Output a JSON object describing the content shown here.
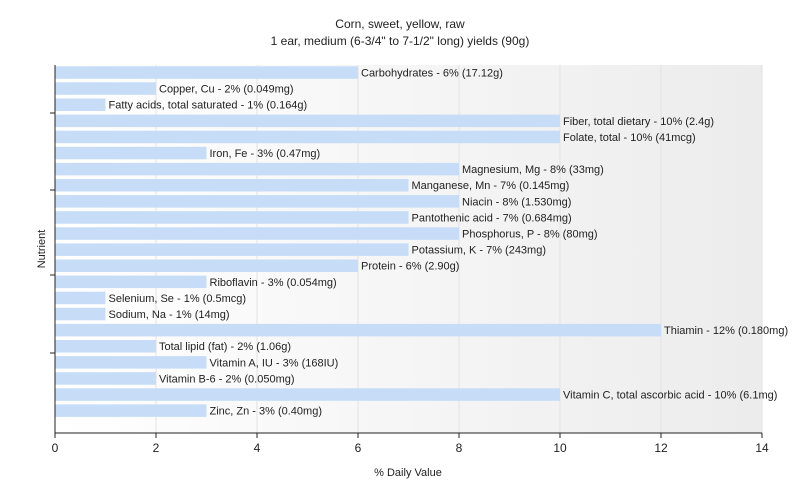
{
  "chart_data": {
    "type": "bar",
    "orientation": "horizontal",
    "title": "Corn, sweet, yellow, raw",
    "subtitle": "1 ear, medium (6-3/4\" to 7-1/2\" long) yields (90g)",
    "xlabel": "% Daily Value",
    "ylabel": "Nutrient",
    "xlim": [
      0,
      14
    ],
    "xticks": [
      0,
      2,
      4,
      6,
      8,
      10,
      12,
      14
    ],
    "grid": "vertical",
    "bar_color": "#c6dcf7",
    "categories": [
      "Carbohydrates",
      "Copper, Cu",
      "Fatty acids, total saturated",
      "Fiber, total dietary",
      "Folate, total",
      "Iron, Fe",
      "Magnesium, Mg",
      "Manganese, Mn",
      "Niacin",
      "Pantothenic acid",
      "Phosphorus, P",
      "Potassium, K",
      "Protein",
      "Riboflavin",
      "Selenium, Se",
      "Sodium, Na",
      "Thiamin",
      "Total lipid (fat)",
      "Vitamin A, IU",
      "Vitamin B-6",
      "Vitamin C, total ascorbic acid",
      "Zinc, Zn"
    ],
    "values": [
      6,
      2,
      1,
      10,
      10,
      3,
      8,
      7,
      8,
      7,
      8,
      7,
      6,
      3,
      1,
      1,
      12,
      2,
      3,
      2,
      10,
      3
    ],
    "labels": [
      "Carbohydrates - 6% (17.12g)",
      "Copper, Cu - 2% (0.049mg)",
      "Fatty acids, total saturated - 1% (0.164g)",
      "Fiber, total dietary - 10% (2.4g)",
      "Folate, total - 10% (41mcg)",
      "Iron, Fe - 3% (0.47mg)",
      "Magnesium, Mg - 8% (33mg)",
      "Manganese, Mn - 7% (0.145mg)",
      "Niacin - 8% (1.530mg)",
      "Pantothenic acid - 7% (0.684mg)",
      "Phosphorus, P - 8% (80mg)",
      "Potassium, K - 7% (243mg)",
      "Protein - 6% (2.90g)",
      "Riboflavin - 3% (0.054mg)",
      "Selenium, Se - 1% (0.5mcg)",
      "Sodium, Na - 1% (14mg)",
      "Thiamin - 12% (0.180mg)",
      "Total lipid (fat) - 2% (1.06g)",
      "Vitamin A, IU - 3% (168IU)",
      "Vitamin B-6 - 2% (0.050mg)",
      "Vitamin C, total ascorbic acid - 10% (6.1mg)",
      "Zinc, Zn - 3% (0.40mg)"
    ]
  }
}
